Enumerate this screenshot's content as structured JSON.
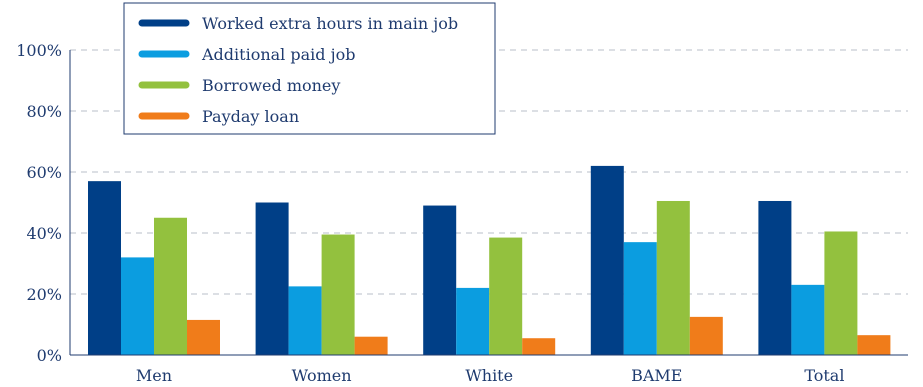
{
  "chart_data": {
    "type": "bar",
    "categories": [
      "Men",
      "Women",
      "White",
      "BAME",
      "Total"
    ],
    "series": [
      {
        "name": "Worked extra hours in main job",
        "color": "#003f87",
        "values": [
          57,
          50,
          49,
          62,
          50.5
        ]
      },
      {
        "name": "Additional paid job",
        "color": "#0b9de0",
        "values": [
          32,
          22.5,
          22,
          37,
          23
        ]
      },
      {
        "name": "Borrowed money",
        "color": "#93c13e",
        "values": [
          45,
          39.5,
          38.5,
          50.5,
          40.5
        ]
      },
      {
        "name": "Payday loan",
        "color": "#f07c1a",
        "values": [
          11.5,
          6,
          5.5,
          12.5,
          6.5
        ]
      }
    ],
    "ylim": [
      0,
      100
    ],
    "yticks": [
      0,
      20,
      40,
      60,
      80,
      100
    ],
    "ytick_labels": [
      "0%",
      "20%",
      "40%",
      "60%",
      "80%",
      "100%"
    ],
    "grid": true,
    "legend_position": "top-left"
  }
}
